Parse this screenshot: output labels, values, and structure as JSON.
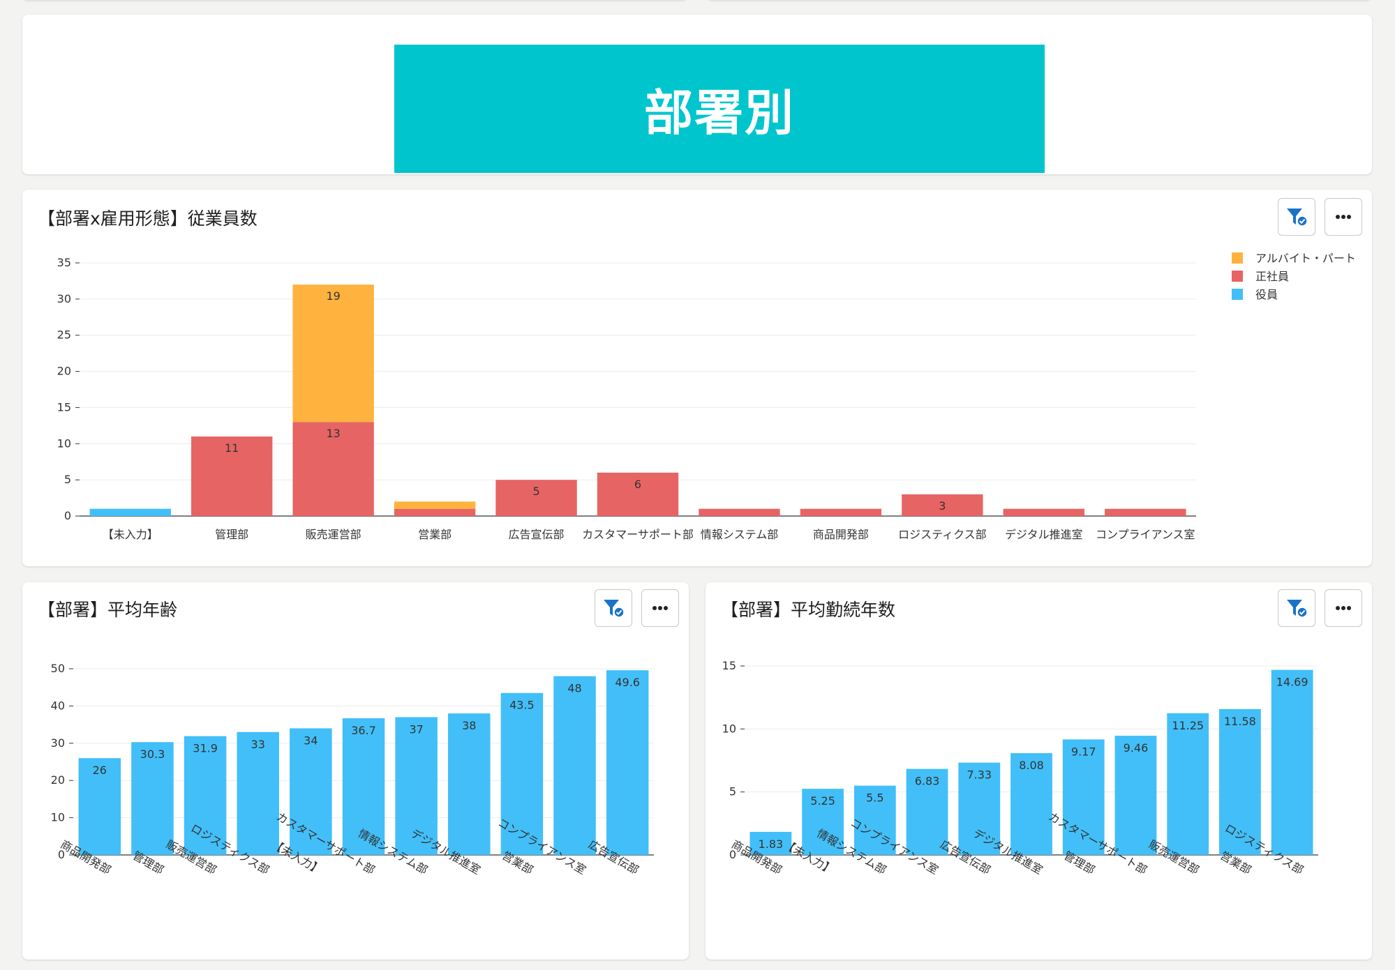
{
  "banner": {
    "title": "部署別"
  },
  "colors": {
    "part": "#ffb23e",
    "regular": "#e76464",
    "officer": "#42bff8",
    "banner": "#00c5cd"
  },
  "icons": {
    "filter": "filter-check-icon",
    "more": "more-icon"
  },
  "chart1": {
    "title": "【部署x雇用形態】従業員数",
    "legend": [
      "アルバイト・パート",
      "正社員",
      "役員"
    ]
  },
  "chart2": {
    "title": "【部署】平均年齢"
  },
  "chart3": {
    "title": "【部署】平均勤続年数"
  },
  "chart_data": [
    {
      "type": "bar",
      "stacked": true,
      "title": "【部署x雇用形態】従業員数",
      "categories": [
        "【未入力】",
        "管理部",
        "販売運営部",
        "営業部",
        "広告宣伝部",
        "カスタマーサポート部",
        "情報システム部",
        "商品開発部",
        "ロジスティクス部",
        "デジタル推進室",
        "コンプライアンス室"
      ],
      "series": [
        {
          "name": "役員",
          "values": [
            1,
            0,
            0,
            0,
            0,
            0,
            0,
            0,
            0,
            0,
            0
          ]
        },
        {
          "name": "正社員",
          "values": [
            0,
            11,
            13,
            1,
            5,
            6,
            1,
            1,
            3,
            1,
            1
          ]
        },
        {
          "name": "アルバイト・パート",
          "values": [
            0,
            0,
            19,
            1,
            0,
            0,
            0,
            0,
            0,
            0,
            0
          ]
        }
      ],
      "data_labels": {
        "役員": [
          "",
          "",
          "",
          "",
          "",
          "",
          "",
          "",
          "",
          "",
          ""
        ],
        "正社員": [
          "",
          "11",
          "13",
          "",
          "5",
          "6",
          "",
          "",
          "3",
          "",
          ""
        ],
        "アルバイト・パート": [
          "",
          "",
          "19",
          "",
          "",
          "",
          "",
          "",
          "",
          "",
          ""
        ]
      },
      "ylim": [
        0,
        35
      ],
      "yticks": [
        0,
        5,
        10,
        15,
        20,
        25,
        30,
        35
      ],
      "legend_position": "top-right",
      "grid": true
    },
    {
      "type": "bar",
      "title": "【部署】平均年齢",
      "categories": [
        "商品開発部",
        "管理部",
        "販売運営部",
        "ロジスティクス部",
        "【未入力】",
        "カスタマーサポート部",
        "情報システム部",
        "デジタル推進室",
        "営業部",
        "コンプライアンス室",
        "広告宣伝部"
      ],
      "values": [
        26,
        30.3,
        31.9,
        33,
        34,
        36.7,
        37,
        38,
        43.5,
        48,
        49.6
      ],
      "labels": [
        "26",
        "30.3",
        "31.9",
        "33",
        "34",
        "36.7",
        "37",
        "38",
        "43.5",
        "48",
        "49.6"
      ],
      "ylim": [
        0,
        50
      ],
      "yticks": [
        0,
        10,
        20,
        30,
        40,
        50
      ],
      "grid": true
    },
    {
      "type": "bar",
      "title": "【部署】平均勤続年数",
      "categories": [
        "商品開発部",
        "【未入力】",
        "情報システム部",
        "コンプライアンス室",
        "広告宣伝部",
        "デジタル推進室",
        "管理部",
        "カスタマーサポート部",
        "販売運営部",
        "営業部",
        "ロジスティクス部"
      ],
      "values": [
        1.83,
        5.25,
        5.5,
        6.83,
        7.33,
        8.08,
        9.17,
        9.46,
        11.25,
        11.58,
        14.69
      ],
      "labels": [
        "1.83",
        "5.25",
        "5.5",
        "6.83",
        "7.33",
        "8.08",
        "9.17",
        "9.46",
        "11.25",
        "11.58",
        "14.69"
      ],
      "ylim": [
        0,
        15
      ],
      "yticks": [
        0,
        5,
        10,
        15
      ],
      "grid": true
    }
  ]
}
